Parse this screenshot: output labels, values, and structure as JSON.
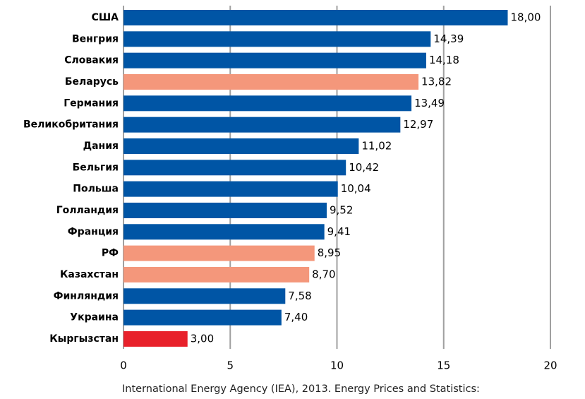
{
  "chart_data": {
    "type": "bar",
    "orientation": "horizontal",
    "categories": [
      "США",
      "Венгрия",
      "Словакия",
      "Беларусь",
      "Германия",
      "Великобритания",
      "Дания",
      "Бельгия",
      "Польша",
      "Голландия",
      "Франция",
      "РФ",
      "Казахстан",
      "Финляндия",
      "Украина",
      "Кыргызстан"
    ],
    "values": [
      18.0,
      14.39,
      14.18,
      13.82,
      13.49,
      12.97,
      11.02,
      10.42,
      10.04,
      9.52,
      9.41,
      8.95,
      8.7,
      7.58,
      7.4,
      3.0
    ],
    "value_labels": [
      "18,00",
      "14,39",
      "14,18",
      "13,82",
      "13,49",
      "12,97",
      "11,02",
      "10,42",
      "10,04",
      "9,52",
      "9,41",
      "8,95",
      "8,70",
      "7,58",
      "7,40",
      "3,00"
    ],
    "colors": [
      "#0055a5",
      "#0055a5",
      "#0055a5",
      "#f4977b",
      "#0055a5",
      "#0055a5",
      "#0055a5",
      "#0055a5",
      "#0055a5",
      "#0055a5",
      "#0055a5",
      "#f4977b",
      "#f4977b",
      "#0055a5",
      "#0055a5",
      "#e8212b"
    ],
    "xlim": [
      0,
      20
    ],
    "xticks": [
      0,
      5,
      10,
      15,
      20
    ],
    "grid": true,
    "source": "International Energy Agency (IEA), 2013. Energy Prices and Statistics:"
  }
}
